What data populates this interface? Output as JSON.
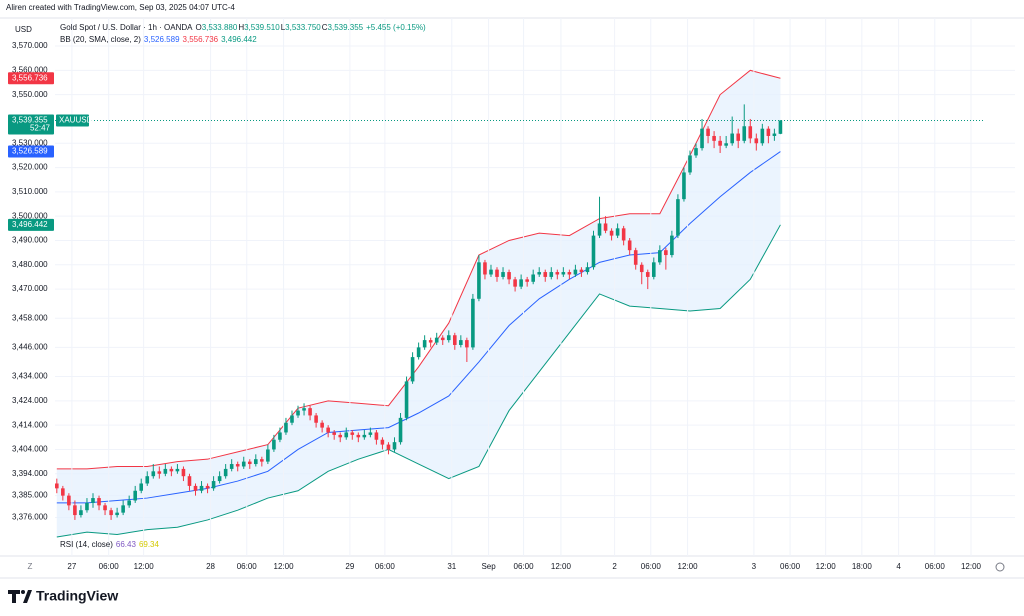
{
  "header": {
    "credit": "Aliren created with TradingView.com, Sep 03, 2025 04:07 UTC-4",
    "symbol": "Gold Spot / U.S. Dollar · 1h · OANDA",
    "ohlc": [
      {
        "key": "O",
        "value": "3,533.880"
      },
      {
        "key": "H",
        "value": "3,539.510"
      },
      {
        "key": "L",
        "value": "3,533.750"
      },
      {
        "key": "C",
        "value": "3,539.355"
      }
    ],
    "change": "+5.455 (+0.15%)",
    "currency": "USD"
  },
  "footer": {
    "brand": "TradingView",
    "zoom": "Z"
  },
  "chart_data": {
    "type": "candlestick",
    "up_color": "#089981",
    "down_color": "#f23645",
    "ylim": [
      3368.8,
      3579.9
    ],
    "xlim": [
      -0.3,
      158.9
    ],
    "grid": true,
    "yticks": [
      {
        "value": 3570,
        "label": "3,570.000"
      },
      {
        "value": 3560,
        "label": "3,560.000"
      },
      {
        "value": 3550,
        "label": "3,550.000"
      },
      {
        "value": 3530,
        "label": "3,530.000"
      },
      {
        "value": 3520,
        "label": "3,520.000"
      },
      {
        "value": 3510,
        "label": "3,510.000"
      },
      {
        "value": 3500,
        "label": "3,500.000"
      },
      {
        "value": 3490,
        "label": "3,490.000"
      },
      {
        "value": 3480,
        "label": "3,480.000"
      },
      {
        "value": 3470,
        "label": "3,470.000"
      },
      {
        "value": 3458,
        "label": "3,458.000"
      },
      {
        "value": 3446,
        "label": "3,446.000"
      },
      {
        "value": 3434,
        "label": "3,434.000"
      },
      {
        "value": 3424,
        "label": "3,424.000"
      },
      {
        "value": 3414,
        "label": "3,414.000"
      },
      {
        "value": 3404,
        "label": "3,404.000"
      },
      {
        "value": 3394,
        "label": "3,394.000"
      },
      {
        "value": 3385,
        "label": "3,385.000"
      },
      {
        "value": 3376,
        "label": "3,376.000"
      }
    ],
    "xticks": [
      {
        "value": 2.5,
        "label": "27"
      },
      {
        "value": 8.6,
        "label": "06:00"
      },
      {
        "value": 14.4,
        "label": "12:00"
      },
      {
        "value": 25.5,
        "label": "28"
      },
      {
        "value": 31.5,
        "label": "06:00"
      },
      {
        "value": 37.6,
        "label": "12:00"
      },
      {
        "value": 48.6,
        "label": "29"
      },
      {
        "value": 54.4,
        "label": "06:00"
      },
      {
        "value": 65.5,
        "label": "31"
      },
      {
        "value": 71.6,
        "label": "Sep"
      },
      {
        "value": 77.4,
        "label": "06:00"
      },
      {
        "value": 83.6,
        "label": "12:00"
      },
      {
        "value": 92.5,
        "label": "2"
      },
      {
        "value": 98.5,
        "label": "06:00"
      },
      {
        "value": 104.6,
        "label": "12:00"
      },
      {
        "value": 115.6,
        "label": "3"
      },
      {
        "value": 121.6,
        "label": "06:00"
      },
      {
        "value": 127.5,
        "label": "12:00"
      },
      {
        "value": 133.5,
        "label": "18:00"
      },
      {
        "value": 139.6,
        "label": "4"
      },
      {
        "value": 145.6,
        "label": "06:00"
      },
      {
        "value": 151.6,
        "label": "12:00"
      }
    ],
    "ohlc": [
      [
        3390,
        3392,
        3386,
        3388
      ],
      [
        3388,
        3389,
        3383,
        3385
      ],
      [
        3385,
        3386,
        3379,
        3381
      ],
      [
        3381,
        3383,
        3375,
        3377
      ],
      [
        3377,
        3381,
        3376,
        3379
      ],
      [
        3379,
        3384,
        3378,
        3382
      ],
      [
        3382,
        3386,
        3380,
        3384
      ],
      [
        3384,
        3385,
        3379,
        3381
      ],
      [
        3381,
        3382,
        3377,
        3379
      ],
      [
        3379,
        3380,
        3375,
        3377
      ],
      [
        3377,
        3380,
        3376,
        3378
      ],
      [
        3378,
        3383,
        3377,
        3381
      ],
      [
        3381,
        3385,
        3380,
        3383
      ],
      [
        3383,
        3389,
        3382,
        3387
      ],
      [
        3387,
        3392,
        3386,
        3390
      ],
      [
        3390,
        3395,
        3389,
        3393
      ],
      [
        3393,
        3398,
        3392,
        3395
      ],
      [
        3395,
        3397,
        3392,
        3394
      ],
      [
        3394,
        3398,
        3393,
        3396
      ],
      [
        3396,
        3397,
        3393,
        3395
      ],
      [
        3395,
        3398,
        3394,
        3396
      ],
      [
        3396,
        3397,
        3391,
        3393
      ],
      [
        3393,
        3394,
        3387,
        3389
      ],
      [
        3389,
        3390,
        3385,
        3387
      ],
      [
        3387,
        3391,
        3386,
        3389
      ],
      [
        3389,
        3390,
        3386,
        3388
      ],
      [
        3388,
        3393,
        3387,
        3391
      ],
      [
        3391,
        3395,
        3390,
        3393
      ],
      [
        3393,
        3398,
        3392,
        3396
      ],
      [
        3396,
        3400,
        3395,
        3398
      ],
      [
        3398,
        3399,
        3395,
        3397
      ],
      [
        3397,
        3401,
        3396,
        3399
      ],
      [
        3399,
        3400,
        3396,
        3398
      ],
      [
        3398,
        3402,
        3397,
        3400
      ],
      [
        3400,
        3401,
        3397,
        3399
      ],
      [
        3399,
        3406,
        3398,
        3404
      ],
      [
        3404,
        3410,
        3403,
        3408
      ],
      [
        3408,
        3413,
        3407,
        3411
      ],
      [
        3411,
        3417,
        3410,
        3415
      ],
      [
        3415,
        3420,
        3414,
        3418
      ],
      [
        3418,
        3422,
        3417,
        3420
      ],
      [
        3420,
        3423,
        3418,
        3421
      ],
      [
        3421,
        3422,
        3416,
        3418
      ],
      [
        3418,
        3419,
        3413,
        3415
      ],
      [
        3415,
        3416,
        3411,
        3413
      ],
      [
        3413,
        3414,
        3409,
        3411
      ],
      [
        3411,
        3412,
        3408,
        3410
      ],
      [
        3410,
        3411,
        3407,
        3409
      ],
      [
        3409,
        3413,
        3408,
        3411
      ],
      [
        3411,
        3412,
        3408,
        3410
      ],
      [
        3410,
        3411,
        3407,
        3409
      ],
      [
        3409,
        3412,
        3408,
        3410
      ],
      [
        3410,
        3413,
        3409,
        3411
      ],
      [
        3411,
        3412,
        3406,
        3408
      ],
      [
        3408,
        3409,
        3404,
        3406
      ],
      [
        3406,
        3407,
        3402,
        3404
      ],
      [
        3404,
        3409,
        3403,
        3407
      ],
      [
        3407,
        3419,
        3406,
        3417
      ],
      [
        3417,
        3434,
        3416,
        3432
      ],
      [
        3432,
        3444,
        3431,
        3442
      ],
      [
        3442,
        3448,
        3441,
        3446
      ],
      [
        3446,
        3451,
        3445,
        3449
      ],
      [
        3449,
        3450,
        3446,
        3448
      ],
      [
        3448,
        3452,
        3447,
        3450
      ],
      [
        3450,
        3451,
        3447,
        3449
      ],
      [
        3449,
        3453,
        3448,
        3451
      ],
      [
        3451,
        3452,
        3445,
        3447
      ],
      [
        3447,
        3451,
        3446,
        3449
      ],
      [
        3449,
        3450,
        3440,
        3446
      ],
      [
        3446,
        3468,
        3445,
        3466
      ],
      [
        3466,
        3484,
        3465,
        3481
      ],
      [
        3481,
        3482,
        3474,
        3476
      ],
      [
        3476,
        3480,
        3475,
        3478
      ],
      [
        3478,
        3479,
        3473,
        3475
      ],
      [
        3475,
        3479,
        3474,
        3477
      ],
      [
        3477,
        3478,
        3472,
        3474
      ],
      [
        3474,
        3475,
        3469,
        3471
      ],
      [
        3471,
        3476,
        3470,
        3474
      ],
      [
        3474,
        3475,
        3471,
        3473
      ],
      [
        3473,
        3478,
        3472,
        3476
      ],
      [
        3476,
        3479,
        3475,
        3477
      ],
      [
        3477,
        3478,
        3473,
        3475
      ],
      [
        3475,
        3479,
        3474,
        3477
      ],
      [
        3477,
        3478,
        3474,
        3476
      ],
      [
        3476,
        3479,
        3475,
        3477
      ],
      [
        3477,
        3478,
        3474,
        3476
      ],
      [
        3476,
        3480,
        3475,
        3478
      ],
      [
        3478,
        3479,
        3475,
        3477
      ],
      [
        3477,
        3481,
        3476,
        3479
      ],
      [
        3479,
        3494,
        3478,
        3492
      ],
      [
        3492,
        3508,
        3491,
        3497
      ],
      [
        3497,
        3500,
        3493,
        3494
      ],
      [
        3494,
        3495,
        3490,
        3492
      ],
      [
        3492,
        3497,
        3491,
        3495
      ],
      [
        3495,
        3496,
        3488,
        3490
      ],
      [
        3490,
        3491,
        3484,
        3486
      ],
      [
        3486,
        3487,
        3478,
        3480
      ],
      [
        3480,
        3481,
        3472,
        3477
      ],
      [
        3477,
        3478,
        3470,
        3475
      ],
      [
        3475,
        3483,
        3474,
        3481
      ],
      [
        3481,
        3488,
        3480,
        3486
      ],
      [
        3486,
        3487,
        3478,
        3484
      ],
      [
        3484,
        3494,
        3483,
        3492
      ],
      [
        3492,
        3509,
        3491,
        3507
      ],
      [
        3507,
        3520,
        3506,
        3518
      ],
      [
        3518,
        3527,
        3517,
        3525
      ],
      [
        3525,
        3530,
        3524,
        3528
      ],
      [
        3528,
        3540,
        3527,
        3536
      ],
      [
        3536,
        3537,
        3530,
        3533
      ],
      [
        3533,
        3535,
        3528,
        3531
      ],
      [
        3531,
        3533,
        3526,
        3529
      ],
      [
        3529,
        3533,
        3528,
        3530
      ],
      [
        3530,
        3541,
        3529,
        3534
      ],
      [
        3534,
        3536,
        3528,
        3531
      ],
      [
        3531,
        3546,
        3530,
        3537
      ],
      [
        3537,
        3540,
        3530,
        3532
      ],
      [
        3532,
        3534,
        3527,
        3530
      ],
      [
        3530,
        3538,
        3529,
        3536
      ],
      [
        3536,
        3537,
        3530,
        3533
      ],
      [
        3533,
        3536,
        3531,
        3534
      ],
      [
        3533.88,
        3539.51,
        3533.75,
        3539.355
      ]
    ],
    "bb": {
      "label": "BB (20, SMA, close, 2)",
      "fill": "#e3f0fd",
      "x": [
        0,
        5,
        10,
        15,
        20,
        25,
        30,
        35,
        40,
        45,
        50,
        55,
        60,
        65,
        70,
        75,
        80,
        85,
        90,
        95,
        100,
        105,
        110,
        115,
        120
      ],
      "lines": [
        {
          "legend": "3,526.589",
          "color": "#2962ff",
          "values": [
            3382,
            3382,
            3383,
            3384,
            3386,
            3388,
            3391,
            3395,
            3404,
            3411,
            3412,
            3413,
            3419,
            3426,
            3440,
            3455,
            3466,
            3474,
            3481,
            3484,
            3485,
            3497,
            3508,
            3518,
            3526.589
          ]
        },
        {
          "legend": "3,556.736",
          "color": "#f23645",
          "values": [
            3396,
            3396,
            3397,
            3397,
            3399,
            3400,
            3403,
            3406,
            3421,
            3424,
            3423,
            3422,
            3438,
            3456,
            3484,
            3490,
            3493,
            3492,
            3499,
            3501,
            3501,
            3525,
            3550,
            3560,
            3556.736
          ]
        },
        {
          "legend": "3,496.442",
          "color": "#089981",
          "values": [
            3368,
            3370,
            3369,
            3371,
            3372,
            3375,
            3379,
            3384,
            3387,
            3395,
            3400,
            3404,
            3398,
            3392,
            3397,
            3420,
            3436,
            3452,
            3468,
            3463,
            3462,
            3461,
            3462,
            3474,
            3496.442
          ]
        }
      ]
    },
    "price_tags": [
      {
        "value": 3556.736,
        "label": "3,556.736",
        "color": "#f23645"
      },
      {
        "value": 3539.355,
        "label": "3,539.355",
        "color": "#089981",
        "countdown": "52:47",
        "symbol": "XAUUSD",
        "current": true
      },
      {
        "value": 3526.589,
        "label": "3,526.589",
        "color": "#2962ff"
      },
      {
        "value": 3496.442,
        "label": "3,496.442",
        "color": "#089981"
      }
    ],
    "rsi": {
      "label": "RSI (14, close)",
      "values": [
        {
          "value": 66.43,
          "color": "#7e57c2"
        },
        {
          "value": 69.34,
          "color": "#d4c900"
        }
      ]
    }
  }
}
